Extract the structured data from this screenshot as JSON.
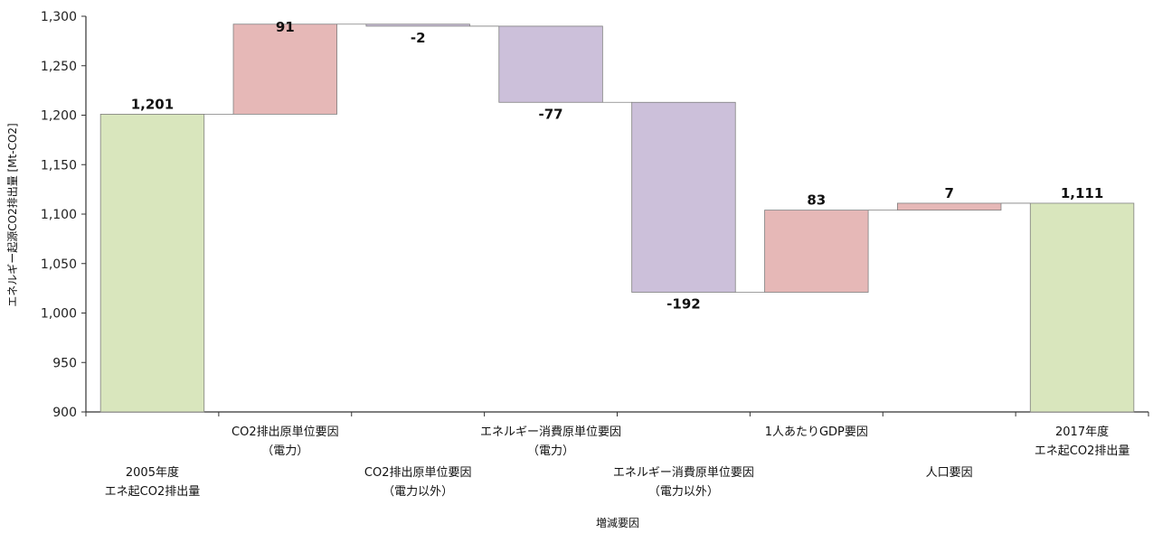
{
  "chart_data": {
    "type": "bar",
    "xlabel": "増減要因",
    "ylabel": "エネルギー起源CO2排出量 [Mt-CO2]",
    "ylim": [
      900,
      1300
    ],
    "yticks": [
      "900",
      "950",
      "1,000",
      "1,050",
      "1,100",
      "1,150",
      "1,200",
      "1,250",
      "1,300"
    ],
    "ytick_values": [
      900,
      950,
      1000,
      1050,
      1100,
      1150,
      1200,
      1250,
      1300
    ],
    "legend": "none",
    "grid": false,
    "bars": [
      {
        "category_lines": [
          "2005年度",
          "エネ起CO2排出量"
        ],
        "kind": "total",
        "start": 900,
        "end": 1201,
        "label": "1,201"
      },
      {
        "category_lines": [
          "CO2排出原単位要因",
          "（電力）"
        ],
        "kind": "increase",
        "start": 1201,
        "end": 1292,
        "label": "91"
      },
      {
        "category_lines": [
          "CO2排出原単位要因",
          "（電力以外）"
        ],
        "kind": "decrease",
        "start": 1292,
        "end": 1290,
        "label": "-2"
      },
      {
        "category_lines": [
          "エネルギー消費原単位要因",
          "（電力）"
        ],
        "kind": "decrease",
        "start": 1290,
        "end": 1213,
        "label": "-77"
      },
      {
        "category_lines": [
          "エネルギー消費原単位要因",
          "（電力以外）"
        ],
        "kind": "decrease",
        "start": 1213,
        "end": 1021,
        "label": "-192"
      },
      {
        "category_lines": [
          "1人あたりGDP要因"
        ],
        "kind": "increase",
        "start": 1021,
        "end": 1104,
        "label": "83"
      },
      {
        "category_lines": [
          "人口要因"
        ],
        "kind": "increase",
        "start": 1104,
        "end": 1111,
        "label": "7"
      },
      {
        "category_lines": [
          "2017年度",
          "エネ起CO2排出量"
        ],
        "kind": "total",
        "start": 900,
        "end": 1111,
        "label": "1,111"
      }
    ],
    "colors": {
      "total": "#d9e6bd",
      "increase": "#e6b8b7",
      "decrease": "#ccc0da",
      "border": "#7f7f7f",
      "axis": "#333333",
      "connector": "#7f7f7f"
    }
  }
}
